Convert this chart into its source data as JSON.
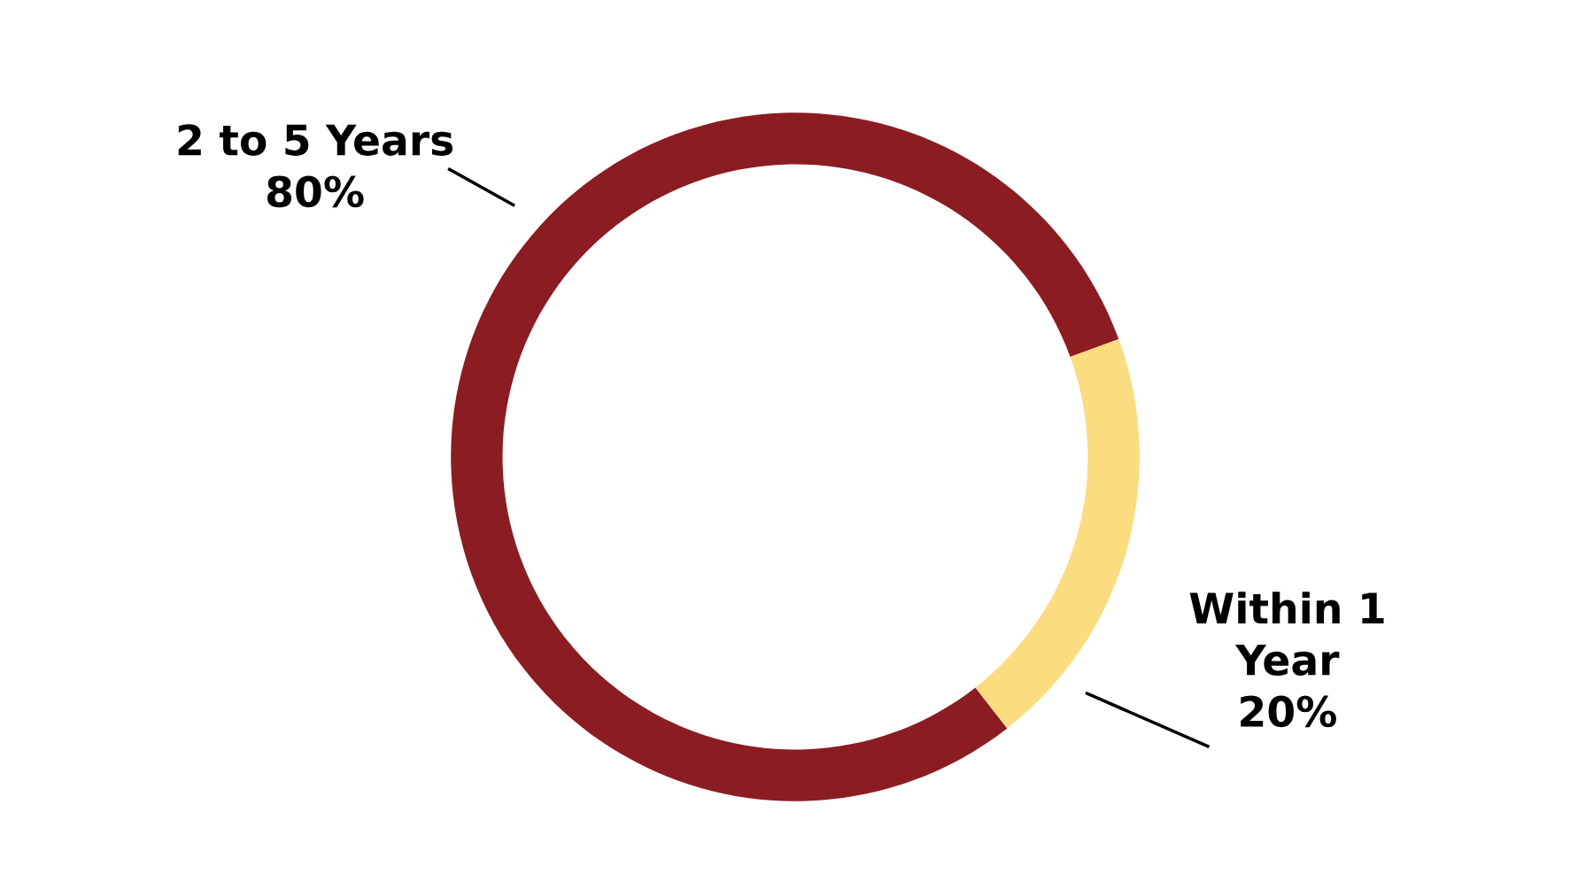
{
  "chart_data": {
    "type": "donut",
    "categories": [
      "2 to 5 Years",
      "Within 1\nYear"
    ],
    "values": [
      80,
      20
    ],
    "colors": [
      "#8b1c22",
      "#fbdc7e"
    ],
    "value_labels": [
      "80%",
      "20%"
    ]
  }
}
